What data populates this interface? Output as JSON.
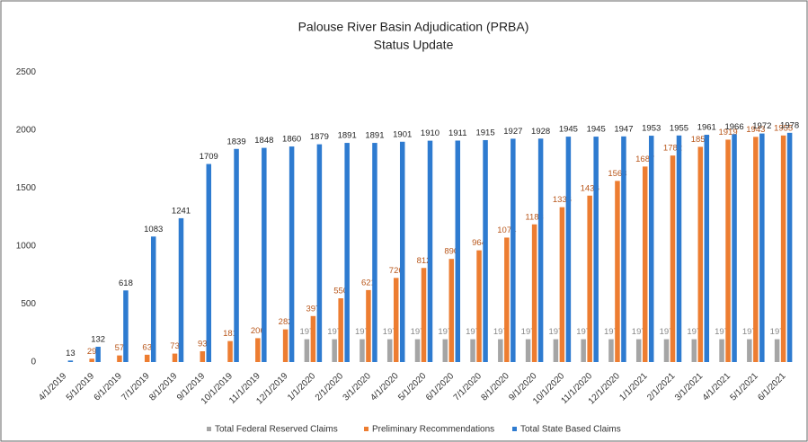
{
  "chart_data": {
    "type": "bar",
    "title": "Palouse River Basin Adjudication (PRBA)",
    "subtitle": "Status Update",
    "categories": [
      "4/1/2019",
      "5/1/2019",
      "6/1/2019",
      "7/1/2019",
      "8/1/2019",
      "9/1/2019",
      "10/1/2019",
      "11/1/2019",
      "12/1/2019",
      "1/1/2020",
      "2/1/2020",
      "3/1/2020",
      "4/1/2020",
      "5/1/2020",
      "6/1/2020",
      "7/1/2020",
      "8/1/2020",
      "9/1/2020",
      "10/1/2020",
      "11/1/2020",
      "12/1/2020",
      "1/1/2021",
      "2/1/2021",
      "3/1/2021",
      "4/1/2021",
      "5/1/2021",
      "6/1/2021"
    ],
    "series": [
      {
        "name": "Total Federal Reserved Claims",
        "color": "#a5a5a5",
        "values": [
          null,
          null,
          null,
          null,
          null,
          null,
          null,
          null,
          null,
          197,
          197,
          197,
          197,
          197,
          197,
          197,
          197,
          197,
          197,
          197,
          197,
          197,
          197,
          197,
          197,
          197,
          197
        ]
      },
      {
        "name": "Preliminary Recommendations",
        "color": "#ed7d31",
        "values": [
          null,
          29,
          57,
          63,
          73,
          93,
          181,
          206,
          282,
          397,
          550,
          621,
          726,
          812,
          890,
          964,
          1074,
          1188,
          1336,
          1436,
          1563,
          1687,
          1782,
          1857,
          1919,
          1943,
          1955
        ]
      },
      {
        "name": "Total State Based Claims",
        "color": "#2e7bd0",
        "values": [
          13,
          132,
          618,
          1083,
          1241,
          1709,
          1839,
          1848,
          1860,
          1879,
          1891,
          1891,
          1901,
          1910,
          1911,
          1915,
          1927,
          1928,
          1945,
          1945,
          1947,
          1953,
          1955,
          1961,
          1966,
          1972,
          1978
        ]
      }
    ],
    "ylim": [
      0,
      2500
    ],
    "yticks": [
      0,
      500,
      1000,
      1500,
      2000,
      2500
    ],
    "grid": false,
    "legend": "bottom"
  }
}
